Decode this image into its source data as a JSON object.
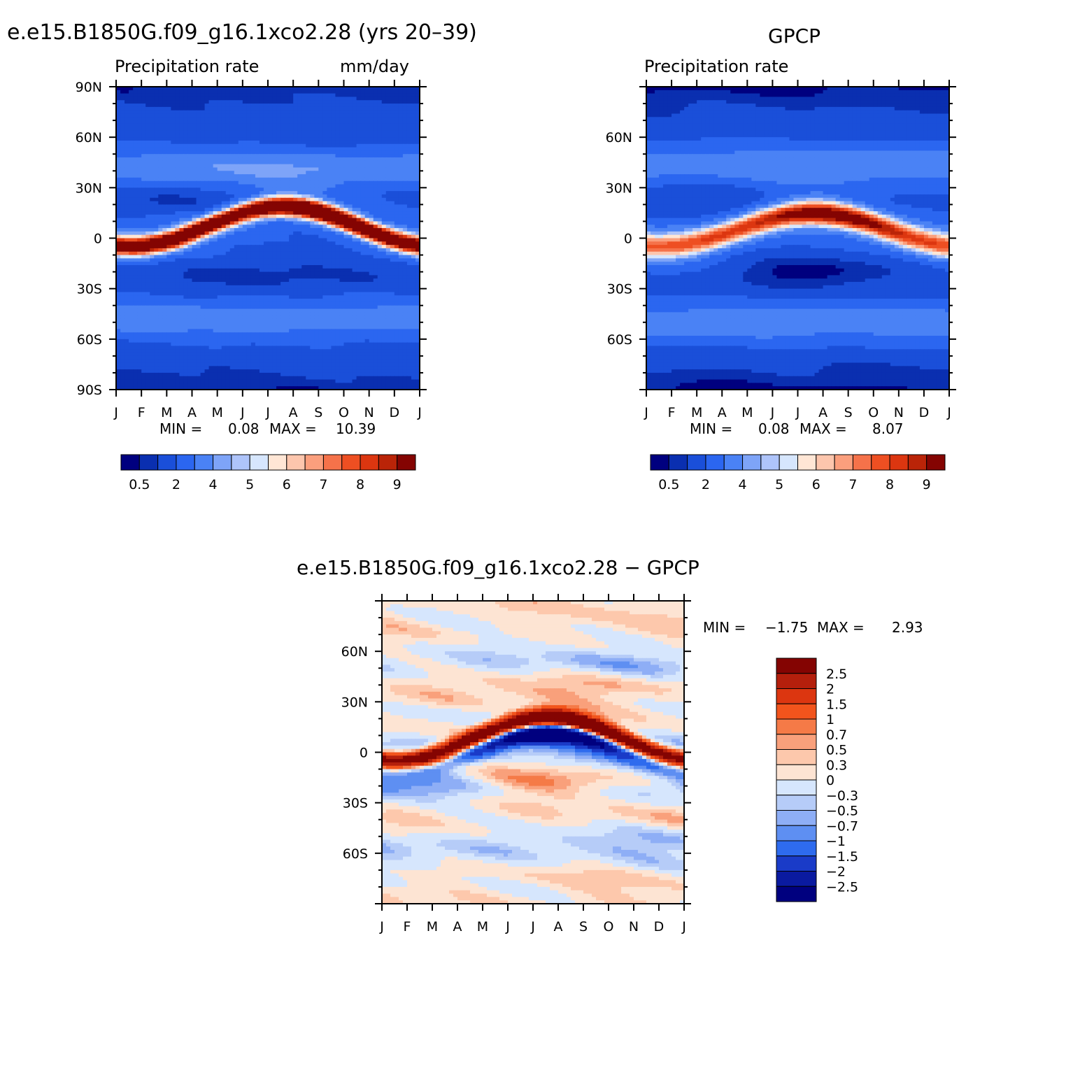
{
  "chart_data": [
    {
      "type": "heatmap",
      "title": "e.e15.B1850G.f09_g16.1xco2.28 (yrs 20–39)",
      "left_label": "Precipitation rate",
      "right_label": "mm/day",
      "x_ticks": [
        "J",
        "F",
        "M",
        "A",
        "M",
        "J",
        "J",
        "A",
        "S",
        "O",
        "N",
        "D",
        "J"
      ],
      "y_ticks": [
        "90N",
        "60N",
        "30N",
        "0",
        "30S",
        "60S",
        "90S"
      ],
      "y_range": [
        -90,
        90
      ],
      "min_label": "MIN =",
      "min_value": "0.08",
      "max_label": "MAX =",
      "max_value": "10.39",
      "colorbar_labels": [
        "0.5",
        "2",
        "4",
        "5",
        "6",
        "7",
        "8",
        "9"
      ]
    },
    {
      "type": "heatmap",
      "title": "GPCP",
      "left_label": "Precipitation rate",
      "x_ticks": [
        "J",
        "F",
        "M",
        "A",
        "M",
        "J",
        "J",
        "A",
        "S",
        "O",
        "N",
        "D",
        "J"
      ],
      "y_ticks": [
        "60N",
        "30N",
        "0",
        "30S",
        "60S"
      ],
      "y_range": [
        -90,
        90
      ],
      "min_label": "MIN =",
      "min_value": "0.08",
      "max_label": "MAX =",
      "max_value": "8.07",
      "colorbar_labels": [
        "0.5",
        "2",
        "4",
        "5",
        "6",
        "7",
        "8",
        "9"
      ]
    },
    {
      "type": "heatmap",
      "title": "e.e15.B1850G.f09_g16.1xco2.28 − GPCP",
      "x_ticks": [
        "J",
        "F",
        "M",
        "A",
        "M",
        "J",
        "J",
        "A",
        "S",
        "O",
        "N",
        "D",
        "J"
      ],
      "y_ticks": [
        "60N",
        "30N",
        "0",
        "30S",
        "60S"
      ],
      "y_range": [
        -90,
        90
      ],
      "min_label": "MIN =",
      "min_value": "−1.75",
      "max_label": "MAX =",
      "max_value": "2.93",
      "colorbar_labels": [
        "2.5",
        "2",
        "1.5",
        "1",
        "0.7",
        "0.5",
        "0.3",
        "0",
        "−0.3",
        "−0.5",
        "−0.7",
        "−1",
        "−1.5",
        "−2",
        "−2.5"
      ]
    }
  ],
  "palette_seq": [
    "#00007f",
    "#0a2fb0",
    "#1a4fd9",
    "#2b66f0",
    "#4a82f5",
    "#7ea4f8",
    "#aec4fa",
    "#d6e6fd",
    "#ffe6d5",
    "#fdc6ad",
    "#fb9f7d",
    "#f5724a",
    "#ee4f22",
    "#dc3610",
    "#ba2408",
    "#840402"
  ],
  "palette_diff": [
    "#840402",
    "#b41f0c",
    "#dc3610",
    "#f2541c",
    "#f57a47",
    "#f9a07b",
    "#fdc8ac",
    "#fde4d3",
    "#d6e6fd",
    "#b6ccf8",
    "#8eaef6",
    "#5e8ff2",
    "#2e6bee",
    "#1a3bc8",
    "#0a1aa0",
    "#00007f"
  ]
}
